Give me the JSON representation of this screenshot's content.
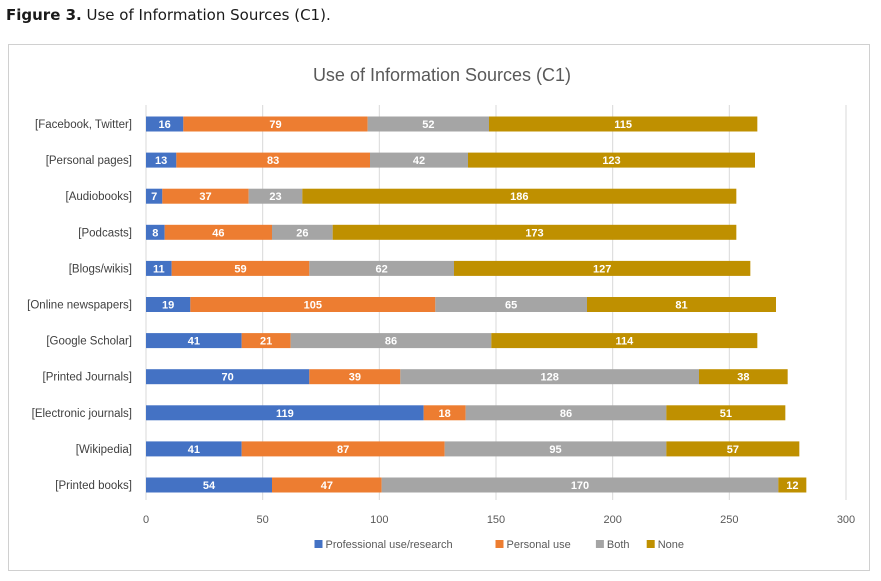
{
  "figure": {
    "label": "Figure 3.",
    "caption": "Use of Information Sources (C1)."
  },
  "colors": {
    "Professional use/research": "#4472c4",
    "Personal use": "#ed7d31",
    "Both": "#a5a5a5",
    "None": "#bf9000"
  },
  "chart_data": {
    "type": "bar",
    "orientation": "horizontal",
    "stacked": true,
    "title": "Use  of Information Sources (C1)",
    "xlabel": "",
    "ylabel": "",
    "xlim": [
      0,
      300
    ],
    "xticks": [
      0,
      50,
      100,
      150,
      200,
      250,
      300
    ],
    "grid": "vertical",
    "legend": "bottom",
    "categories": [
      "[Facebook, Twitter]",
      "[Personal pages]",
      "[Audiobooks]",
      "[Podcasts]",
      "[Blogs/wikis]",
      "[Online newspapers]",
      "[Google Scholar]",
      "[Printed Journals]",
      "[Electronic journals]",
      "[Wikipedia]",
      "[Printed books]"
    ],
    "series": [
      {
        "name": "Professional use/research",
        "values": [
          16,
          13,
          7,
          8,
          11,
          19,
          41,
          70,
          119,
          41,
          54
        ]
      },
      {
        "name": "Personal use",
        "values": [
          79,
          83,
          37,
          46,
          59,
          105,
          21,
          39,
          18,
          87,
          47
        ]
      },
      {
        "name": "Both",
        "values": [
          52,
          42,
          23,
          26,
          62,
          65,
          86,
          128,
          86,
          95,
          170
        ]
      },
      {
        "name": "None",
        "values": [
          115,
          123,
          186,
          173,
          127,
          81,
          114,
          38,
          51,
          57,
          12
        ]
      }
    ]
  }
}
